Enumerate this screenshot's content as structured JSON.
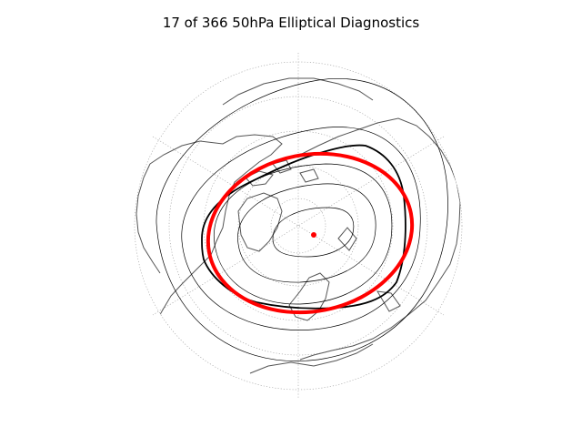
{
  "figure": {
    "title": "17 of 366 50hPa Elliptical Diagnostics"
  },
  "map": {
    "projection": "north polar orthographic",
    "graticule": "dotted",
    "coastline_color": "#555555",
    "contour_color": "#000000",
    "ellipse_color": "#ff0000",
    "centroid_color": "#ff0000",
    "highlighted_contour_color": "#000000"
  }
}
